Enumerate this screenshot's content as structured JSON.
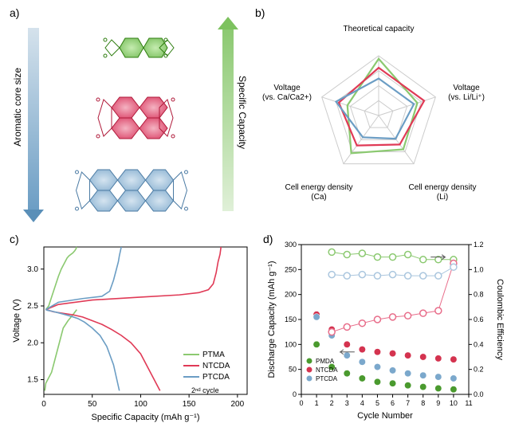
{
  "labels": {
    "a": "a)",
    "b": "b)",
    "c": "c)",
    "d": "d)"
  },
  "panel_a": {
    "left_arrow_label": "Aromatic core size",
    "right_arrow_label": "Specific Capacity",
    "molecules": [
      {
        "name": "PTMA",
        "color": "#9ed97c",
        "stroke": "#2e7d0f"
      },
      {
        "name": "NTCDA",
        "color": "#e86d8a",
        "stroke": "#b01a3a"
      },
      {
        "name": "PTCDA",
        "color": "#aac6de",
        "stroke": "#4a7aa3"
      }
    ]
  },
  "panel_b": {
    "type": "radar",
    "axes": [
      "Theoretical capacity",
      "Voltage\n(vs. Li/Li⁺)",
      "Cell energy density\n(Li)",
      "Cell energy density\n(Ca)",
      "Voltage\n(vs. Ca/Ca2+)"
    ],
    "grid_color": "#cccccc",
    "series": [
      {
        "name": "PTMA",
        "color": "#8bc970",
        "values": [
          0.95,
          0.68,
          0.7,
          0.78,
          0.55
        ]
      },
      {
        "name": "NTCDA",
        "color": "#e03a56",
        "values": [
          0.8,
          0.8,
          0.6,
          0.62,
          0.7
        ]
      },
      {
        "name": "PTCDA",
        "color": "#6b9dc4",
        "values": [
          0.62,
          0.62,
          0.48,
          0.45,
          0.75
        ]
      }
    ]
  },
  "panel_c": {
    "type": "line",
    "title": "2ⁿᵈ cycle",
    "xlabel": "Specific Capacity (mAh g⁻¹)",
    "ylabel": "Voltage (V)",
    "xlim": [
      0,
      210
    ],
    "xticks": [
      0,
      50,
      100,
      150,
      200
    ],
    "ylim": [
      1.3,
      3.3
    ],
    "yticks": [
      1.5,
      2.0,
      2.5,
      3.0
    ],
    "series": [
      {
        "name": "PTMA",
        "color": "#8bc970",
        "charge_x": [
          2,
          5,
          10,
          15,
          18,
          20,
          22,
          24,
          26,
          28,
          30,
          32,
          33,
          34
        ],
        "charge_y": [
          2.45,
          2.5,
          2.7,
          2.9,
          3.0,
          3.05,
          3.1,
          3.15,
          3.18,
          3.2,
          3.22,
          3.25,
          3.27,
          3.3
        ],
        "discharge_x": [
          34,
          30,
          25,
          20,
          18,
          16,
          14,
          12,
          10,
          8,
          6,
          4,
          2,
          1
        ],
        "discharge_y": [
          2.45,
          2.38,
          2.3,
          2.2,
          2.1,
          2.0,
          1.9,
          1.8,
          1.7,
          1.6,
          1.55,
          1.5,
          1.45,
          1.35
        ]
      },
      {
        "name": "NTCDA",
        "color": "#e03a56",
        "charge_x": [
          2,
          15,
          50,
          100,
          140,
          160,
          170,
          175,
          178,
          180,
          182,
          183
        ],
        "charge_y": [
          2.45,
          2.52,
          2.58,
          2.62,
          2.65,
          2.68,
          2.72,
          2.8,
          2.95,
          3.1,
          3.2,
          3.3
        ],
        "discharge_x": [
          120,
          110,
          100,
          90,
          80,
          70,
          60,
          50,
          40,
          30,
          20,
          10,
          5,
          2
        ],
        "discharge_y": [
          1.35,
          1.6,
          1.85,
          2.0,
          2.1,
          2.18,
          2.25,
          2.3,
          2.35,
          2.38,
          2.4,
          2.42,
          2.44,
          2.45
        ]
      },
      {
        "name": "PTCDA",
        "color": "#6b9dc4",
        "charge_x": [
          2,
          15,
          40,
          60,
          68,
          72,
          75,
          77,
          78,
          79,
          80
        ],
        "charge_y": [
          2.45,
          2.55,
          2.6,
          2.63,
          2.7,
          2.85,
          3.0,
          3.1,
          3.18,
          3.24,
          3.3
        ],
        "discharge_x": [
          78,
          72,
          65,
          58,
          50,
          42,
          35,
          28,
          20,
          14,
          8,
          4,
          2
        ],
        "discharge_y": [
          1.35,
          1.7,
          1.95,
          2.1,
          2.2,
          2.28,
          2.33,
          2.36,
          2.39,
          2.41,
          2.43,
          2.44,
          2.45
        ]
      }
    ]
  },
  "panel_d": {
    "type": "scatter",
    "xlabel": "Cycle Number",
    "ylabel_left": "Discharge Capacity (mAh g⁻¹)",
    "ylabel_right": "Coulombic Efficiency",
    "xlim": [
      0,
      11
    ],
    "xticks": [
      0,
      1,
      2,
      3,
      4,
      5,
      6,
      7,
      8,
      9,
      10,
      11
    ],
    "ylim_left": [
      0,
      300
    ],
    "yticks_left": [
      0,
      50,
      100,
      150,
      200,
      250,
      300
    ],
    "ylim_right": [
      0,
      1.2
    ],
    "yticks_right": [
      0.0,
      0.2,
      0.4,
      0.6,
      0.8,
      1.0,
      1.2
    ],
    "legend_pos": "bottom-left",
    "series_capacity": [
      {
        "name": "PMDA",
        "color": "#4a9a2e",
        "x": [
          1,
          2,
          3,
          4,
          5,
          6,
          7,
          8,
          9,
          10
        ],
        "y": [
          100,
          55,
          42,
          32,
          25,
          22,
          18,
          15,
          12,
          10
        ]
      },
      {
        "name": "NTCDA",
        "color": "#d4334f",
        "x": [
          1,
          2,
          3,
          4,
          5,
          6,
          7,
          8,
          9,
          10
        ],
        "y": [
          160,
          130,
          100,
          90,
          85,
          82,
          78,
          75,
          72,
          70
        ]
      },
      {
        "name": "PTCDA",
        "color": "#7ba8cc",
        "x": [
          1,
          2,
          3,
          4,
          5,
          6,
          7,
          8,
          9,
          10
        ],
        "y": [
          155,
          118,
          78,
          65,
          55,
          48,
          42,
          38,
          35,
          32
        ]
      }
    ],
    "series_ce": [
      {
        "name": "PMDA",
        "color": "#8bc970",
        "x": [
          2,
          3,
          4,
          5,
          6,
          7,
          8,
          9,
          10
        ],
        "y": [
          1.14,
          1.12,
          1.13,
          1.1,
          1.1,
          1.12,
          1.08,
          1.08,
          1.08
        ]
      },
      {
        "name": "NTCDA",
        "color": "#e86d8a",
        "x": [
          2,
          3,
          4,
          5,
          6,
          7,
          8,
          9,
          10
        ],
        "y": [
          0.5,
          0.54,
          0.57,
          0.6,
          0.62,
          0.63,
          0.65,
          0.67,
          1.05
        ]
      },
      {
        "name": "PTCDA",
        "color": "#aac6de",
        "x": [
          2,
          3,
          4,
          5,
          6,
          7,
          8,
          9,
          10
        ],
        "y": [
          0.96,
          0.95,
          0.96,
          0.95,
          0.96,
          0.95,
          0.95,
          0.95,
          1.02
        ]
      }
    ]
  },
  "colors": {
    "axis": "#000000",
    "grid": "#dddddd"
  }
}
